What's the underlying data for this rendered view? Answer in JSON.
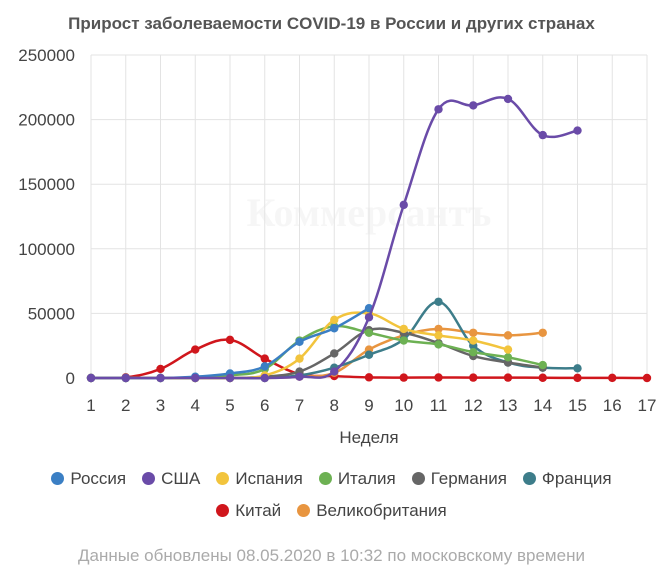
{
  "chart_data": {
    "type": "line",
    "title": "Прирост заболеваемости COVID-19 в России и других странах",
    "xlabel": "Неделя",
    "ylabel": "",
    "x": [
      1,
      2,
      3,
      4,
      5,
      6,
      7,
      8,
      9,
      10,
      11,
      12,
      13,
      14,
      15,
      16,
      17
    ],
    "xlim": [
      1,
      17
    ],
    "ylim": [
      0,
      250000
    ],
    "yticks": [
      "0",
      "50000",
      "100000",
      "150000",
      "200000",
      "250000"
    ],
    "grid": true,
    "legend_position": "bottom",
    "watermark": "Коммерсантъ",
    "series": [
      {
        "name": "Россия",
        "color": "#3b7fc4",
        "points": [
          [
            1,
            0
          ],
          [
            2,
            0
          ],
          [
            3,
            0
          ],
          [
            4,
            1000
          ],
          [
            5,
            3500
          ],
          [
            6,
            9000
          ],
          [
            7,
            28000
          ],
          [
            8,
            38500
          ],
          [
            9,
            54000
          ]
        ]
      },
      {
        "name": "США",
        "color": "#6a4ba8",
        "points": [
          [
            1,
            0
          ],
          [
            2,
            0
          ],
          [
            3,
            0
          ],
          [
            4,
            0
          ],
          [
            5,
            0
          ],
          [
            6,
            0
          ],
          [
            7,
            1000
          ],
          [
            8,
            5000
          ],
          [
            9,
            47000
          ],
          [
            10,
            134000
          ],
          [
            11,
            208000
          ],
          [
            12,
            211000
          ],
          [
            13,
            216000
          ],
          [
            14,
            188000
          ],
          [
            15,
            191500
          ]
        ]
      },
      {
        "name": "Испания",
        "color": "#f2c43d",
        "points": [
          [
            1,
            0
          ],
          [
            2,
            0
          ],
          [
            3,
            0
          ],
          [
            4,
            0
          ],
          [
            5,
            0
          ],
          [
            6,
            2000
          ],
          [
            7,
            15000
          ],
          [
            8,
            45000
          ],
          [
            9,
            50000
          ],
          [
            10,
            38000
          ],
          [
            11,
            33000
          ],
          [
            12,
            29000
          ],
          [
            13,
            22000
          ]
        ]
      },
      {
        "name": "Италия",
        "color": "#6db153",
        "points": [
          [
            1,
            0
          ],
          [
            2,
            0
          ],
          [
            3,
            0
          ],
          [
            4,
            0
          ],
          [
            5,
            2000
          ],
          [
            6,
            7000
          ],
          [
            7,
            29000
          ],
          [
            8,
            40000
          ],
          [
            9,
            35000
          ],
          [
            10,
            29000
          ],
          [
            11,
            26000
          ],
          [
            12,
            20000
          ],
          [
            13,
            16000
          ],
          [
            14,
            10000
          ]
        ]
      },
      {
        "name": "Германия",
        "color": "#666666",
        "points": [
          [
            1,
            0
          ],
          [
            2,
            0
          ],
          [
            3,
            0
          ],
          [
            4,
            0
          ],
          [
            5,
            0
          ],
          [
            6,
            1000
          ],
          [
            7,
            5000
          ],
          [
            8,
            19000
          ],
          [
            9,
            37000
          ],
          [
            10,
            35000
          ],
          [
            11,
            27000
          ],
          [
            12,
            17000
          ],
          [
            13,
            12000
          ],
          [
            14,
            8000
          ]
        ]
      },
      {
        "name": "Франция",
        "color": "#3d7d8a",
        "points": [
          [
            1,
            0
          ],
          [
            2,
            0
          ],
          [
            3,
            0
          ],
          [
            4,
            0
          ],
          [
            5,
            0
          ],
          [
            6,
            0
          ],
          [
            7,
            2000
          ],
          [
            8,
            8000
          ],
          [
            9,
            18000
          ],
          [
            10,
            30000
          ],
          [
            11,
            59000
          ],
          [
            12,
            25000
          ],
          [
            13,
            12000
          ],
          [
            14,
            8000
          ],
          [
            15,
            7500
          ]
        ]
      },
      {
        "name": "Китай",
        "color": "#d0161c",
        "points": [
          [
            1,
            0
          ],
          [
            2,
            500
          ],
          [
            3,
            7000
          ],
          [
            4,
            22000
          ],
          [
            5,
            29500
          ],
          [
            6,
            15000
          ],
          [
            7,
            3000
          ],
          [
            8,
            1500
          ],
          [
            9,
            500
          ],
          [
            10,
            300
          ],
          [
            11,
            400
          ],
          [
            12,
            300
          ],
          [
            13,
            300
          ],
          [
            14,
            200
          ],
          [
            15,
            100
          ],
          [
            16,
            100
          ],
          [
            17,
            0
          ]
        ]
      },
      {
        "name": "Великобритания",
        "color": "#e89540",
        "points": [
          [
            1,
            0
          ],
          [
            2,
            0
          ],
          [
            3,
            0
          ],
          [
            4,
            0
          ],
          [
            5,
            0
          ],
          [
            6,
            0
          ],
          [
            7,
            1000
          ],
          [
            8,
            4000
          ],
          [
            9,
            22000
          ],
          [
            10,
            33000
          ],
          [
            11,
            38000
          ],
          [
            12,
            35000
          ],
          [
            13,
            33000
          ],
          [
            14,
            35000
          ]
        ]
      }
    ]
  },
  "footnote": "Данные обновлены 08.05.2020 в 10:32 по московскому времени"
}
